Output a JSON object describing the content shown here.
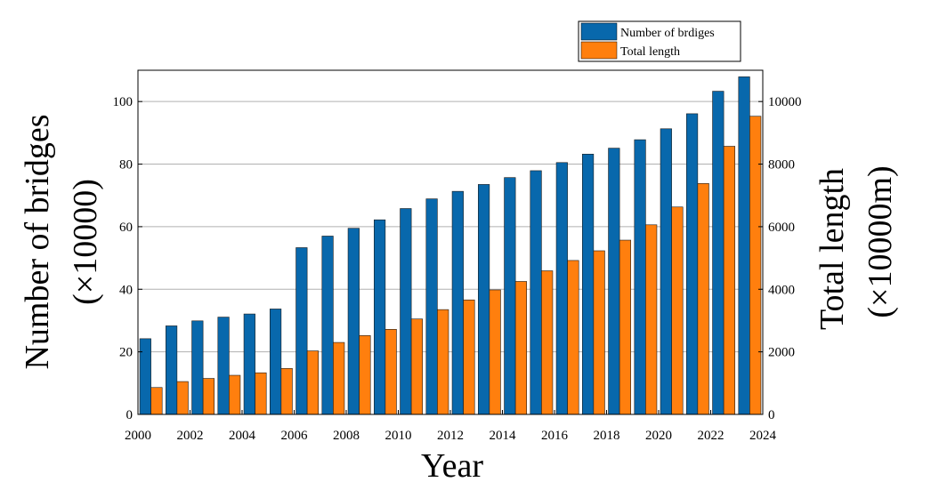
{
  "chart_data": {
    "type": "bar",
    "title": "",
    "xlabel": "Year",
    "ylabel_left": [
      "Number of bridges",
      "(×10000)"
    ],
    "ylabel_right": [
      "Total length",
      "(×10000m)"
    ],
    "x": [
      2000,
      2001,
      2002,
      2003,
      2004,
      2005,
      2006,
      2007,
      2008,
      2009,
      2010,
      2011,
      2012,
      2013,
      2014,
      2015,
      2016,
      2017,
      2018,
      2019,
      2020,
      2021,
      2022,
      2023
    ],
    "x_ticks": [
      2000,
      2002,
      2004,
      2006,
      2008,
      2010,
      2012,
      2014,
      2016,
      2018,
      2020,
      2022,
      2024
    ],
    "xlim": [
      2000,
      2024
    ],
    "ylim_left": [
      0,
      110
    ],
    "yticks_left": [
      0,
      20,
      40,
      60,
      80,
      100
    ],
    "ylim_right": [
      0,
      11000
    ],
    "yticks_right": [
      0,
      2000,
      4000,
      6000,
      8000,
      10000
    ],
    "grid": "horizontal",
    "legend_position": "top-right",
    "series": [
      {
        "name": "Number of brdiges",
        "axis": "left",
        "color": "#0868ac",
        "values": [
          24.2,
          28.3,
          29.9,
          31.1,
          32.1,
          33.7,
          53.3,
          57.0,
          59.5,
          62.2,
          65.8,
          68.9,
          71.3,
          73.5,
          75.7,
          77.9,
          80.5,
          83.2,
          85.1,
          87.8,
          91.3,
          96.1,
          103.3,
          107.9
        ]
      },
      {
        "name": "Total length",
        "axis": "right",
        "color": "#ff7f0e",
        "values": [
          860,
          1050,
          1150,
          1250,
          1330,
          1470,
          2030,
          2300,
          2520,
          2720,
          3050,
          3350,
          3660,
          3980,
          4250,
          4590,
          4920,
          5230,
          5570,
          6060,
          6630,
          7380,
          8570,
          9530
        ]
      }
    ]
  }
}
